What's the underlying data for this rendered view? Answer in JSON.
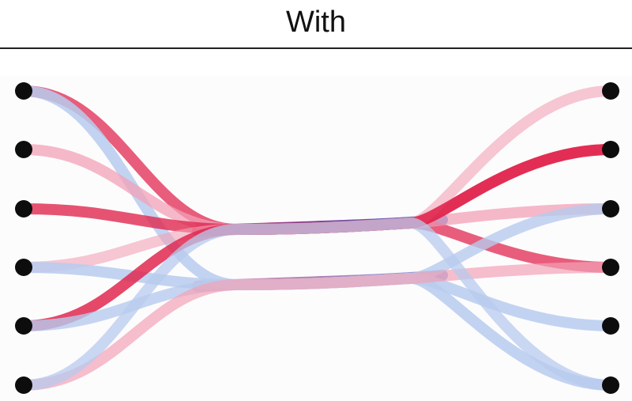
{
  "title": "With",
  "colors": {
    "red": "#e0284f",
    "blue": "#3f6fd6",
    "pink_light": "#f2a2b7",
    "blue_light": "#b7cbee",
    "bundle_mid": "#6b2a8a",
    "node": "#0d0d0d"
  },
  "diagram": {
    "type": "edge-bundled-bipartite-graph",
    "left_nodes": 6,
    "right_nodes": 6,
    "edges": [
      {
        "from": 0,
        "to": 3,
        "color": "#e0284f",
        "opacity": 0.75,
        "bundle": "upper"
      },
      {
        "from": 0,
        "to": 5,
        "color": "#b7cbee",
        "opacity": 0.85,
        "bundle": "lower"
      },
      {
        "from": 1,
        "to": 2,
        "color": "#f2a2b7",
        "opacity": 0.75,
        "bundle": "upper"
      },
      {
        "from": 2,
        "to": 1,
        "color": "#e0284f",
        "opacity": 0.8,
        "bundle": "upper"
      },
      {
        "from": 3,
        "to": 0,
        "color": "#f2a2b7",
        "opacity": 0.6,
        "bundle": "upper"
      },
      {
        "from": 3,
        "to": 4,
        "color": "#b7cbee",
        "opacity": 0.85,
        "bundle": "lower"
      },
      {
        "from": 4,
        "to": 1,
        "color": "#e0284f",
        "opacity": 0.85,
        "bundle": "upper"
      },
      {
        "from": 4,
        "to": 2,
        "color": "#b7cbee",
        "opacity": 0.8,
        "bundle": "lower"
      },
      {
        "from": 5,
        "to": 3,
        "color": "#f2a2b7",
        "opacity": 0.7,
        "bundle": "lower"
      },
      {
        "from": 5,
        "to": 5,
        "color": "#b7cbee",
        "opacity": 0.75,
        "bundle": "upper"
      }
    ]
  }
}
